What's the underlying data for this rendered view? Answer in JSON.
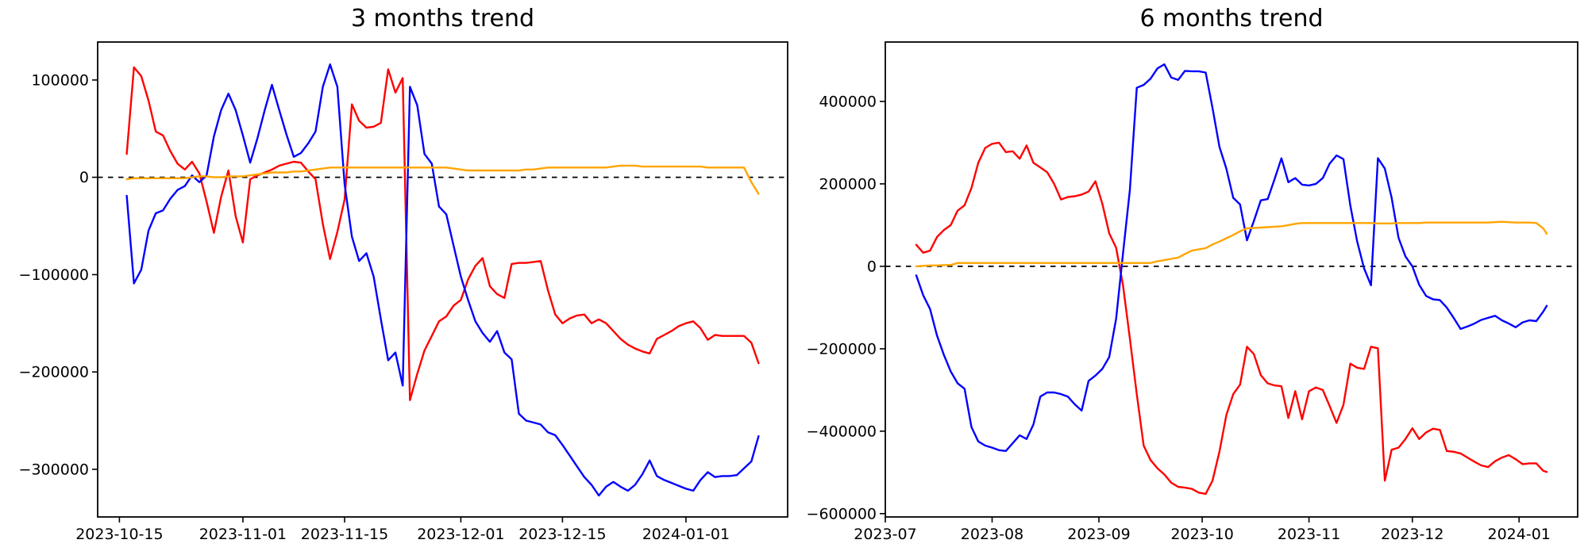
{
  "figure": {
    "background": "#ffffff",
    "text_color": "#000000",
    "frame_color": "#000000"
  },
  "chart_data": [
    {
      "id": "3-months-trend",
      "type": "line",
      "title": "3 months trend",
      "grid": false,
      "legend": null,
      "xlim": [
        "2023-10-12",
        "2024-01-15"
      ],
      "ylim": [
        -349000,
        139000
      ],
      "zero_line": {
        "style": "dashed",
        "color": "#000000"
      },
      "x_ticks": [
        {
          "date": "2023-10-15",
          "label": "2023-10-15"
        },
        {
          "date": "2023-11-01",
          "label": "2023-11-01"
        },
        {
          "date": "2023-11-15",
          "label": "2023-11-15"
        },
        {
          "date": "2023-12-01",
          "label": "2023-12-01"
        },
        {
          "date": "2023-12-15",
          "label": "2023-12-15"
        },
        {
          "date": "2024-01-01",
          "label": "2024-01-01"
        }
      ],
      "y_ticks": [
        {
          "value": 100000,
          "label": "100000"
        },
        {
          "value": 0,
          "label": "0"
        },
        {
          "value": -100000,
          "label": "−100000"
        },
        {
          "value": -200000,
          "label": "−200000"
        },
        {
          "value": -300000,
          "label": "−300000"
        }
      ],
      "x": [
        "2023-10-16",
        "2023-10-17",
        "2023-10-18",
        "2023-10-19",
        "2023-10-20",
        "2023-10-21",
        "2023-10-22",
        "2023-10-23",
        "2023-10-24",
        "2023-10-25",
        "2023-10-26",
        "2023-10-27",
        "2023-10-28",
        "2023-10-29",
        "2023-10-30",
        "2023-10-31",
        "2023-11-01",
        "2023-11-02",
        "2023-11-03",
        "2023-11-04",
        "2023-11-05",
        "2023-11-06",
        "2023-11-07",
        "2023-11-08",
        "2023-11-09",
        "2023-11-10",
        "2023-11-11",
        "2023-11-12",
        "2023-11-13",
        "2023-11-14",
        "2023-11-15",
        "2023-11-16",
        "2023-11-17",
        "2023-11-18",
        "2023-11-19",
        "2023-11-20",
        "2023-11-21",
        "2023-11-22",
        "2023-11-23",
        "2023-11-24",
        "2023-11-25",
        "2023-11-26",
        "2023-11-27",
        "2023-11-28",
        "2023-11-29",
        "2023-11-30",
        "2023-12-01",
        "2023-12-02",
        "2023-12-03",
        "2023-12-04",
        "2023-12-05",
        "2023-12-06",
        "2023-12-07",
        "2023-12-08",
        "2023-12-09",
        "2023-12-10",
        "2023-12-11",
        "2023-12-12",
        "2023-12-13",
        "2023-12-14",
        "2023-12-15",
        "2023-12-16",
        "2023-12-17",
        "2023-12-18",
        "2023-12-19",
        "2023-12-20",
        "2023-12-21",
        "2023-12-22",
        "2023-12-23",
        "2023-12-24",
        "2023-12-25",
        "2023-12-26",
        "2023-12-27",
        "2023-12-28",
        "2023-12-29",
        "2023-12-30",
        "2023-12-31",
        "2024-01-01",
        "2024-01-02",
        "2024-01-03",
        "2024-01-04",
        "2024-01-05",
        "2024-01-06",
        "2024-01-07",
        "2024-01-08",
        "2024-01-09",
        "2024-01-10",
        "2024-01-11"
      ],
      "series": [
        {
          "name": "red-series",
          "color": "#ff0000",
          "values": [
            24000,
            113000,
            104000,
            79000,
            47000,
            43000,
            27000,
            14000,
            8000,
            16000,
            4000,
            -25000,
            -57000,
            -20000,
            7000,
            -40000,
            -67000,
            -2000,
            2000,
            5000,
            8000,
            12000,
            14000,
            16000,
            15000,
            6000,
            -2000,
            -48000,
            -84000,
            -56000,
            -23000,
            75000,
            58000,
            51000,
            52000,
            56000,
            111000,
            87000,
            102000,
            -229000,
            -202000,
            -178000,
            -163000,
            -148000,
            -143000,
            -132000,
            -126000,
            -105000,
            -91000,
            -83000,
            -112000,
            -120000,
            -124000,
            -89000,
            -88000,
            -88000,
            -87000,
            -86000,
            -116000,
            -141000,
            -150000,
            -145000,
            -142000,
            -141000,
            -150000,
            -146000,
            -150000,
            -158000,
            -166000,
            -172000,
            -176000,
            -179000,
            -181000,
            -166000,
            -162000,
            -158000,
            -153000,
            -150000,
            -148000,
            -155000,
            -167000,
            -162000,
            -163000,
            -163000,
            -163000,
            -163000,
            -170000,
            -191000
          ]
        },
        {
          "name": "blue-series",
          "color": "#0000ff",
          "values": [
            -19000,
            -109000,
            -95000,
            -55000,
            -37000,
            -34000,
            -22000,
            -13000,
            -9000,
            2000,
            -5000,
            2000,
            42000,
            69000,
            86000,
            69000,
            43000,
            15000,
            40000,
            69000,
            95000,
            69000,
            44000,
            21000,
            25000,
            35000,
            47000,
            93000,
            116000,
            93000,
            -7000,
            -61000,
            -86000,
            -78000,
            -102000,
            -146000,
            -188000,
            -180000,
            -214000,
            93000,
            74000,
            24000,
            14000,
            -30000,
            -38000,
            -70000,
            -102000,
            -126000,
            -148000,
            -160000,
            -169000,
            -158000,
            -180000,
            -187000,
            -243000,
            -250000,
            -252000,
            -254000,
            -262000,
            -265000,
            -275000,
            -286000,
            -297000,
            -308000,
            -316000,
            -327000,
            -318000,
            -313000,
            -318000,
            -322000,
            -316000,
            -305000,
            -291000,
            -307000,
            -311000,
            -314000,
            -317000,
            -320000,
            -322000,
            -311000,
            -303000,
            -308000,
            -307000,
            -307000,
            -306000,
            -299000,
            -292000,
            -266000
          ]
        },
        {
          "name": "orange-series",
          "color": "#ffa500",
          "values": [
            -2000,
            -1000,
            -1000,
            -1000,
            -1000,
            -1000,
            -1000,
            -1000,
            -1000,
            0,
            1000,
            1000,
            0,
            0,
            1000,
            1000,
            1000,
            2000,
            3000,
            4000,
            5000,
            5000,
            5000,
            6000,
            6000,
            7000,
            8000,
            9000,
            10000,
            10000,
            10000,
            10000,
            10000,
            10000,
            10000,
            10000,
            10000,
            10000,
            10000,
            10000,
            10000,
            10000,
            10000,
            10000,
            10000,
            9000,
            8000,
            7000,
            7000,
            7000,
            7000,
            7000,
            7000,
            7000,
            7000,
            8000,
            8000,
            9000,
            10000,
            10000,
            10000,
            10000,
            10000,
            10000,
            10000,
            10000,
            10000,
            11000,
            12000,
            12000,
            12000,
            11000,
            11000,
            11000,
            11000,
            11000,
            11000,
            11000,
            11000,
            11000,
            10000,
            10000,
            10000,
            10000,
            10000,
            10000,
            -5000,
            -17000
          ]
        }
      ]
    },
    {
      "id": "6-months-trend",
      "type": "line",
      "title": "6 months trend",
      "grid": false,
      "legend": null,
      "xlim": [
        "2023-07-01",
        "2024-01-18"
      ],
      "ylim": [
        -608000,
        544000
      ],
      "zero_line": {
        "style": "dashed",
        "color": "#000000"
      },
      "x_ticks": [
        {
          "date": "2023-07-01",
          "label": "2023-07"
        },
        {
          "date": "2023-08-01",
          "label": "2023-08"
        },
        {
          "date": "2023-09-01",
          "label": "2023-09"
        },
        {
          "date": "2023-10-01",
          "label": "2023-10"
        },
        {
          "date": "2023-11-01",
          "label": "2023-11"
        },
        {
          "date": "2023-12-01",
          "label": "2023-12"
        },
        {
          "date": "2024-01-01",
          "label": "2024-01"
        }
      ],
      "y_ticks": [
        {
          "value": 400000,
          "label": "400000"
        },
        {
          "value": 200000,
          "label": "200000"
        },
        {
          "value": 0,
          "label": "0"
        },
        {
          "value": -200000,
          "label": "−200000"
        },
        {
          "value": -400000,
          "label": "−400000"
        },
        {
          "value": -600000,
          "label": "−600000"
        }
      ],
      "x": [
        "2023-07-10",
        "2023-07-12",
        "2023-07-14",
        "2023-07-16",
        "2023-07-18",
        "2023-07-20",
        "2023-07-22",
        "2023-07-24",
        "2023-07-26",
        "2023-07-28",
        "2023-07-30",
        "2023-08-01",
        "2023-08-03",
        "2023-08-05",
        "2023-08-07",
        "2023-08-09",
        "2023-08-11",
        "2023-08-13",
        "2023-08-15",
        "2023-08-17",
        "2023-08-19",
        "2023-08-21",
        "2023-08-23",
        "2023-08-25",
        "2023-08-27",
        "2023-08-29",
        "2023-08-31",
        "2023-09-02",
        "2023-09-04",
        "2023-09-06",
        "2023-09-08",
        "2023-09-10",
        "2023-09-12",
        "2023-09-14",
        "2023-09-16",
        "2023-09-18",
        "2023-09-20",
        "2023-09-22",
        "2023-09-24",
        "2023-09-26",
        "2023-09-28",
        "2023-09-30",
        "2023-10-02",
        "2023-10-04",
        "2023-10-06",
        "2023-10-08",
        "2023-10-10",
        "2023-10-12",
        "2023-10-14",
        "2023-10-16",
        "2023-10-18",
        "2023-10-20",
        "2023-10-22",
        "2023-10-24",
        "2023-10-26",
        "2023-10-28",
        "2023-10-30",
        "2023-11-01",
        "2023-11-03",
        "2023-11-05",
        "2023-11-07",
        "2023-11-09",
        "2023-11-11",
        "2023-11-13",
        "2023-11-15",
        "2023-11-17",
        "2023-11-19",
        "2023-11-21",
        "2023-11-23",
        "2023-11-25",
        "2023-11-27",
        "2023-11-29",
        "2023-12-01",
        "2023-12-03",
        "2023-12-05",
        "2023-12-07",
        "2023-12-09",
        "2023-12-11",
        "2023-12-13",
        "2023-12-15",
        "2023-12-17",
        "2023-12-19",
        "2023-12-21",
        "2023-12-23",
        "2023-12-25",
        "2023-12-27",
        "2023-12-29",
        "2023-12-31",
        "2024-01-02",
        "2024-01-04",
        "2024-01-06",
        "2024-01-08",
        "2024-01-09"
      ],
      "series": [
        {
          "name": "red-series",
          "color": "#ff0000",
          "values": [
            52000,
            33000,
            38000,
            71000,
            88000,
            100000,
            135000,
            148000,
            190000,
            251000,
            287000,
            297000,
            300000,
            277000,
            279000,
            261000,
            293000,
            251000,
            240000,
            228000,
            200000,
            162000,
            168000,
            170000,
            174000,
            181000,
            206000,
            152000,
            80000,
            45000,
            -45000,
            -175000,
            -310000,
            -435000,
            -470000,
            -490000,
            -505000,
            -525000,
            -535000,
            -537000,
            -540000,
            -549000,
            -552000,
            -520000,
            -450000,
            -361000,
            -310000,
            -287000,
            -195000,
            -213000,
            -264000,
            -284000,
            -289000,
            -291000,
            -368000,
            -303000,
            -371000,
            -303000,
            -294000,
            -300000,
            -339000,
            -380000,
            -336000,
            -236000,
            -246000,
            -249000,
            -195000,
            -199000,
            -520000,
            -445000,
            -440000,
            -419000,
            -393000,
            -419000,
            -403000,
            -394000,
            -397000,
            -448000,
            -450000,
            -454000,
            -464000,
            -474000,
            -483000,
            -487000,
            -473000,
            -464000,
            -458000,
            -468000,
            -480000,
            -478000,
            -478000,
            -496000,
            -499000
          ]
        },
        {
          "name": "blue-series",
          "color": "#0000ff",
          "values": [
            -22000,
            -70000,
            -104000,
            -168000,
            -215000,
            -255000,
            -284000,
            -297000,
            -390000,
            -425000,
            -435000,
            -440000,
            -446000,
            -448000,
            -429000,
            -410000,
            -419000,
            -384000,
            -316000,
            -306000,
            -306000,
            -310000,
            -316000,
            -335000,
            -350000,
            -278000,
            -265000,
            -249000,
            -220000,
            -127000,
            30000,
            185000,
            433000,
            440000,
            455000,
            480000,
            490000,
            458000,
            452000,
            474000,
            473000,
            473000,
            470000,
            384000,
            290000,
            237000,
            166000,
            150000,
            63000,
            110000,
            160000,
            163000,
            211000,
            262000,
            204000,
            214000,
            198000,
            196000,
            200000,
            214000,
            249000,
            269000,
            260000,
            147000,
            60000,
            -5000,
            -46000,
            262000,
            237000,
            166000,
            69000,
            24000,
            0,
            -45000,
            -72000,
            -80000,
            -82000,
            -100000,
            -125000,
            -152000,
            -146000,
            -139000,
            -130000,
            -125000,
            -120000,
            -131000,
            -139000,
            -148000,
            -136000,
            -131000,
            -133000,
            -110000,
            -96000
          ]
        },
        {
          "name": "orange-series",
          "color": "#ffa500",
          "values": [
            0,
            1000,
            2000,
            2000,
            3000,
            3000,
            8000,
            8000,
            8000,
            8000,
            8000,
            8000,
            8000,
            8000,
            8000,
            8000,
            8000,
            8000,
            8000,
            8000,
            8000,
            8000,
            8000,
            8000,
            8000,
            8000,
            8000,
            8000,
            8000,
            8000,
            8000,
            8000,
            8000,
            8000,
            8000,
            12000,
            15000,
            18000,
            21000,
            30000,
            38000,
            41000,
            44000,
            53000,
            60000,
            68000,
            76000,
            85000,
            92000,
            93000,
            94000,
            95000,
            96000,
            97000,
            100000,
            103000,
            105000,
            105000,
            105000,
            105000,
            105000,
            105000,
            105000,
            105000,
            105000,
            105000,
            105000,
            104000,
            104000,
            104000,
            105000,
            105000,
            105000,
            105000,
            106000,
            106000,
            106000,
            106000,
            106000,
            106000,
            106000,
            106000,
            106000,
            106000,
            107000,
            108000,
            107000,
            106000,
            106000,
            106000,
            105000,
            92000,
            79000
          ]
        }
      ]
    }
  ]
}
